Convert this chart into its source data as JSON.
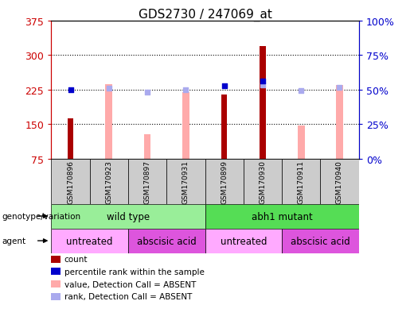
{
  "title": "GDS2730 / 247069_at",
  "samples": [
    "GSM170896",
    "GSM170923",
    "GSM170897",
    "GSM170931",
    "GSM170899",
    "GSM170930",
    "GSM170911",
    "GSM170940"
  ],
  "count": [
    162,
    null,
    null,
    null,
    215,
    320,
    null,
    null
  ],
  "percentile_rank": [
    50,
    null,
    null,
    null,
    53,
    56,
    null,
    null
  ],
  "value_absent": [
    null,
    237,
    128,
    220,
    null,
    null,
    147,
    235
  ],
  "rank_absent": [
    null,
    229,
    220,
    225,
    null,
    235,
    223,
    230
  ],
  "ylim_left": [
    75,
    375
  ],
  "ylim_right": [
    0,
    100
  ],
  "yticks_left": [
    75,
    150,
    225,
    300,
    375
  ],
  "yticks_right": [
    0,
    25,
    50,
    75,
    100
  ],
  "bar_width": 0.15,
  "color_count": "#aa0000",
  "color_percentile": "#0000cc",
  "color_value_absent": "#ffaaaa",
  "color_rank_absent": "#aaaaee",
  "genotype_groups": [
    {
      "label": "wild type",
      "start": 0,
      "end": 3,
      "color": "#99ee99"
    },
    {
      "label": "abh1 mutant",
      "start": 4,
      "end": 7,
      "color": "#55dd55"
    }
  ],
  "agent_groups": [
    {
      "label": "untreated",
      "start": 0,
      "end": 1,
      "color": "#ffaaff"
    },
    {
      "label": "abscisic acid",
      "start": 2,
      "end": 3,
      "color": "#dd55dd"
    },
    {
      "label": "untreated",
      "start": 4,
      "end": 5,
      "color": "#ffaaff"
    },
    {
      "label": "abscisic acid",
      "start": 6,
      "end": 7,
      "color": "#dd55dd"
    }
  ],
  "legend_items": [
    {
      "label": "count",
      "color": "#aa0000"
    },
    {
      "label": "percentile rank within the sample",
      "color": "#0000cc"
    },
    {
      "label": "value, Detection Call = ABSENT",
      "color": "#ffaaaa"
    },
    {
      "label": "rank, Detection Call = ABSENT",
      "color": "#aaaaee"
    }
  ],
  "left_label_color": "#cc0000",
  "right_label_color": "#0000cc",
  "bg_plot": "#ffffff",
  "bg_tick_area": "#cccccc",
  "dot_size": 25,
  "gridlines": [
    150,
    225,
    300
  ]
}
